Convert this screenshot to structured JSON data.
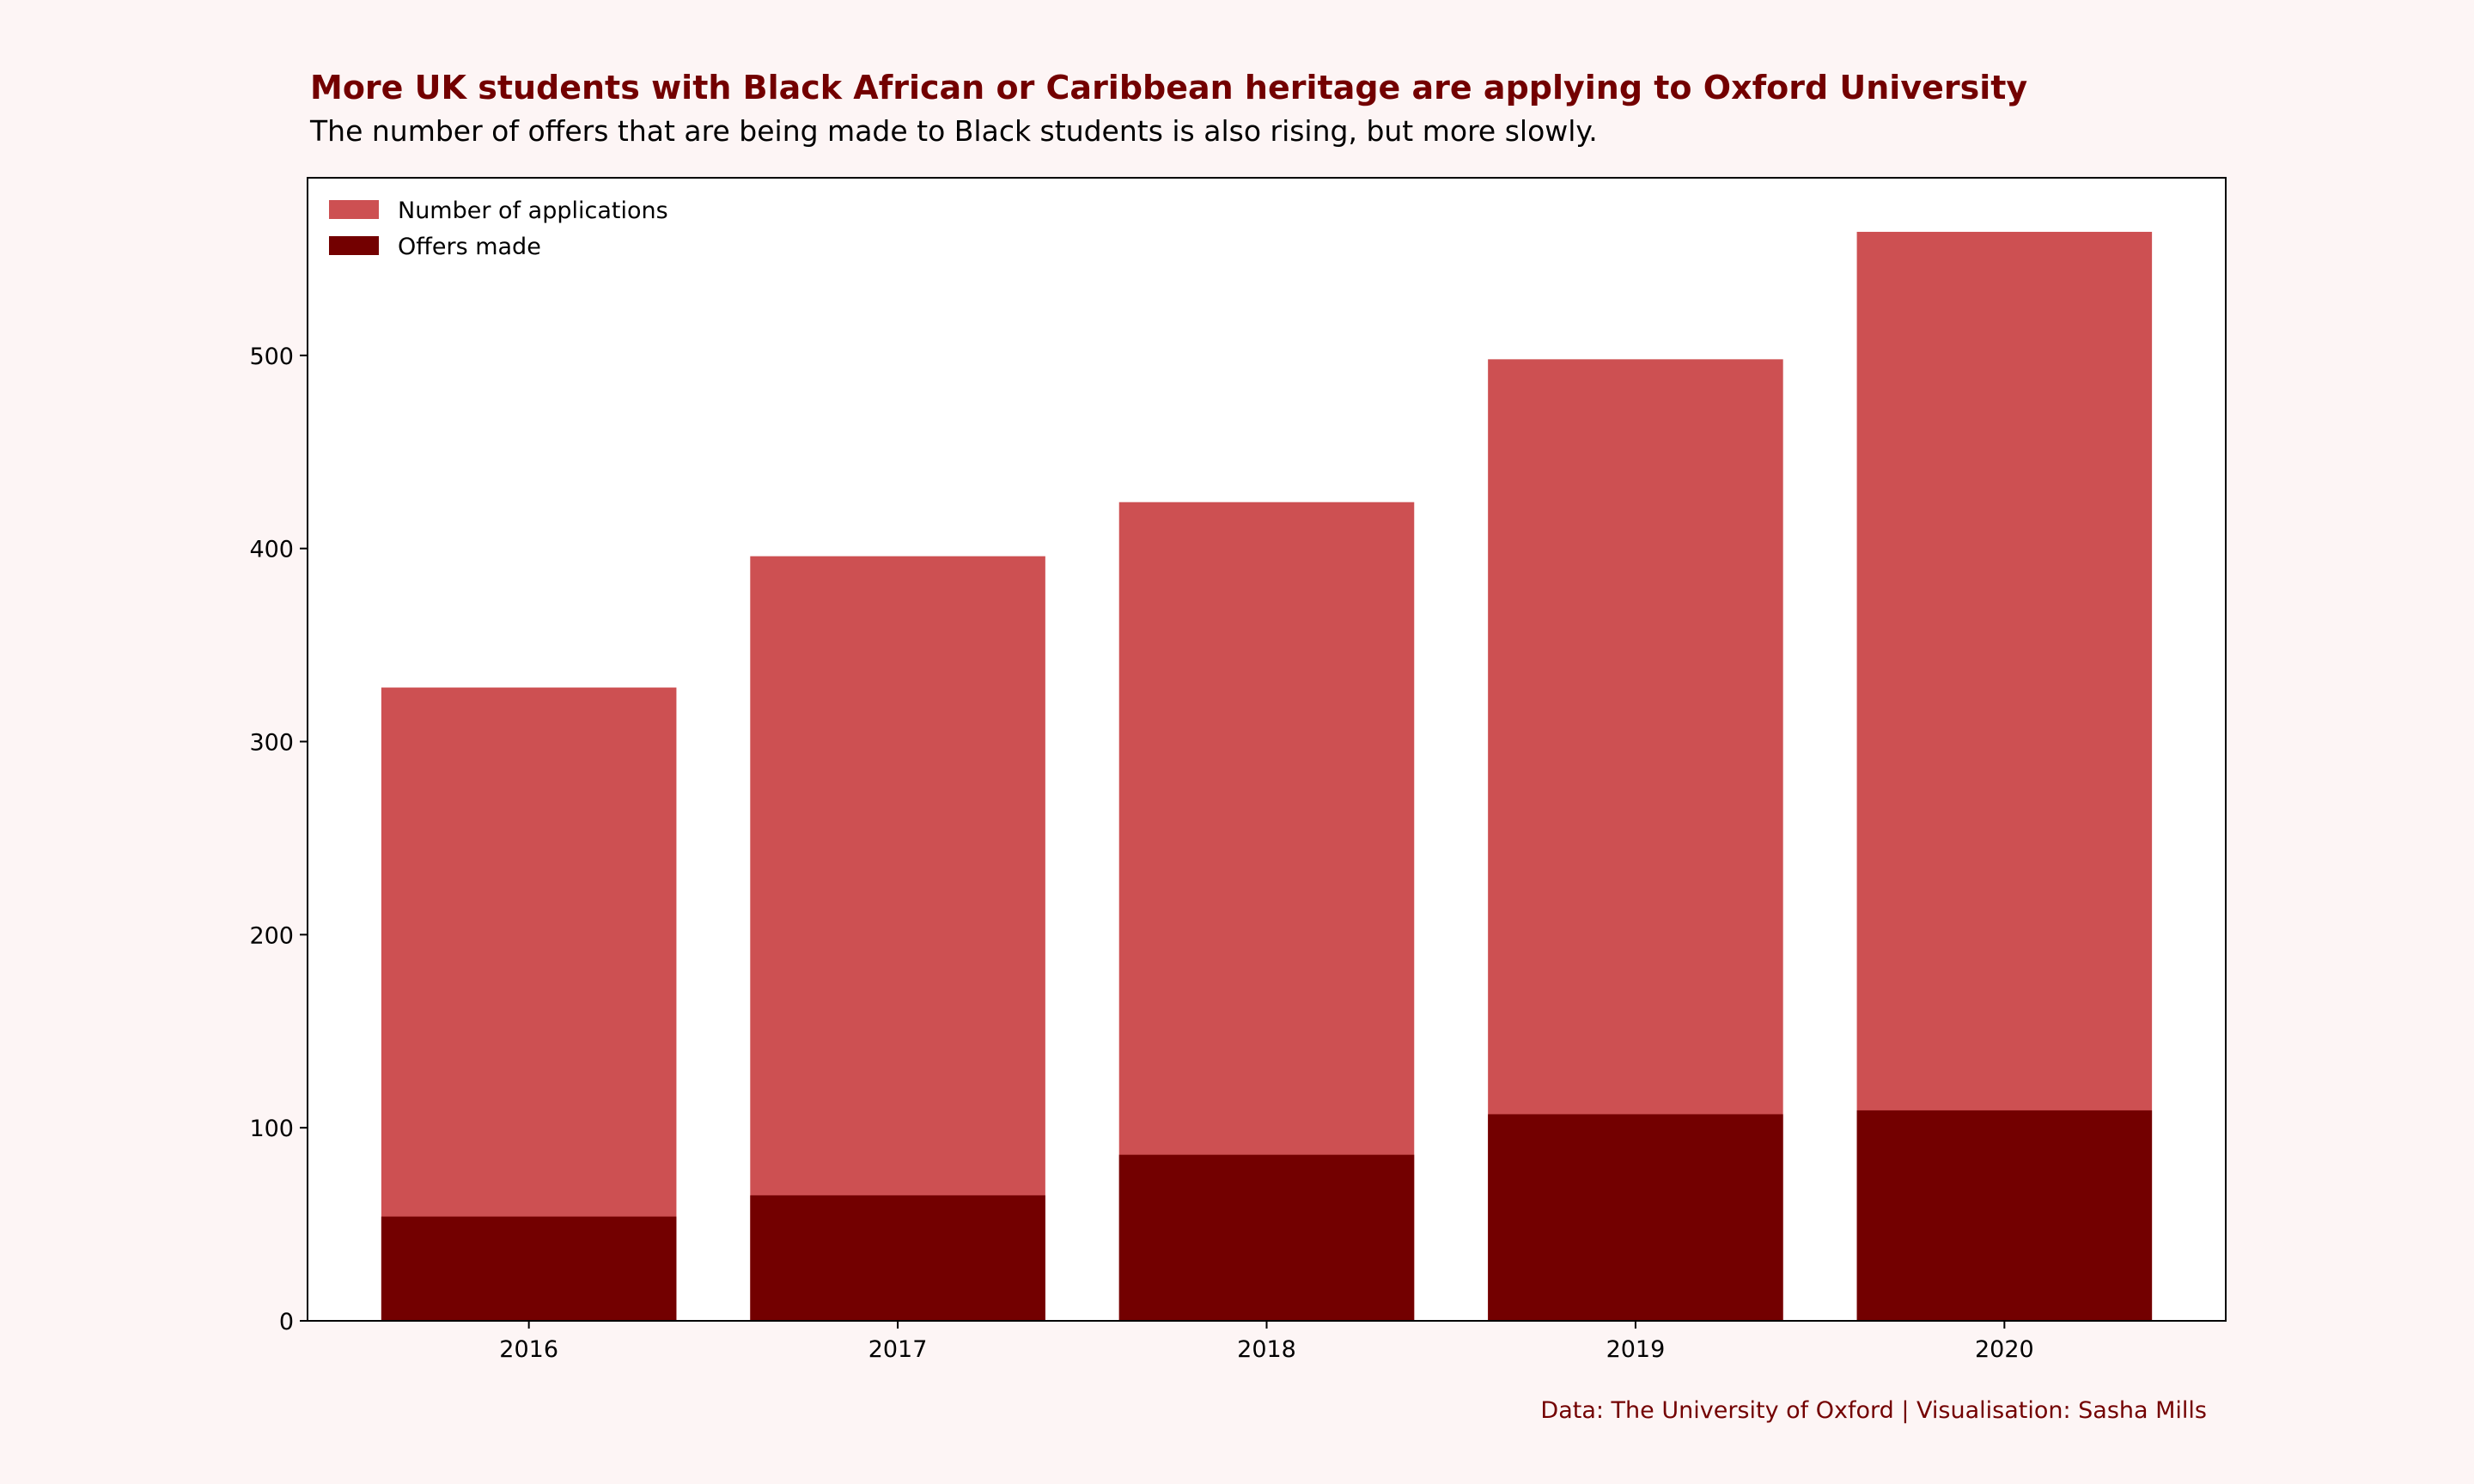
{
  "colors": {
    "background": "#fdf5f5",
    "plot_background": "#ffffff",
    "applications": "#cd5052",
    "offers": "#730000",
    "title": "#730000",
    "credit": "#730000"
  },
  "credit": "Data: The University of Oxford | Visualisation: Sasha Mills",
  "chart_data": {
    "type": "bar",
    "title": "More UK students with Black African or Caribbean heritage are applying to Oxford University",
    "subtitle": "The number of offers that are being made to Black students is also rising, but more slowly.",
    "xlabel": "",
    "ylabel": "",
    "categories": [
      "2016",
      "2017",
      "2018",
      "2019",
      "2020"
    ],
    "series": [
      {
        "name": "Number of applications",
        "values": [
          328,
          396,
          424,
          498,
          564
        ]
      },
      {
        "name": "Offers made",
        "values": [
          54,
          65,
          86,
          107,
          109
        ]
      }
    ],
    "overlay": true,
    "ylim": [
      0,
      592
    ],
    "yticks": [
      0,
      100,
      200,
      300,
      400,
      500
    ],
    "grid": false,
    "legend": "top-left"
  }
}
